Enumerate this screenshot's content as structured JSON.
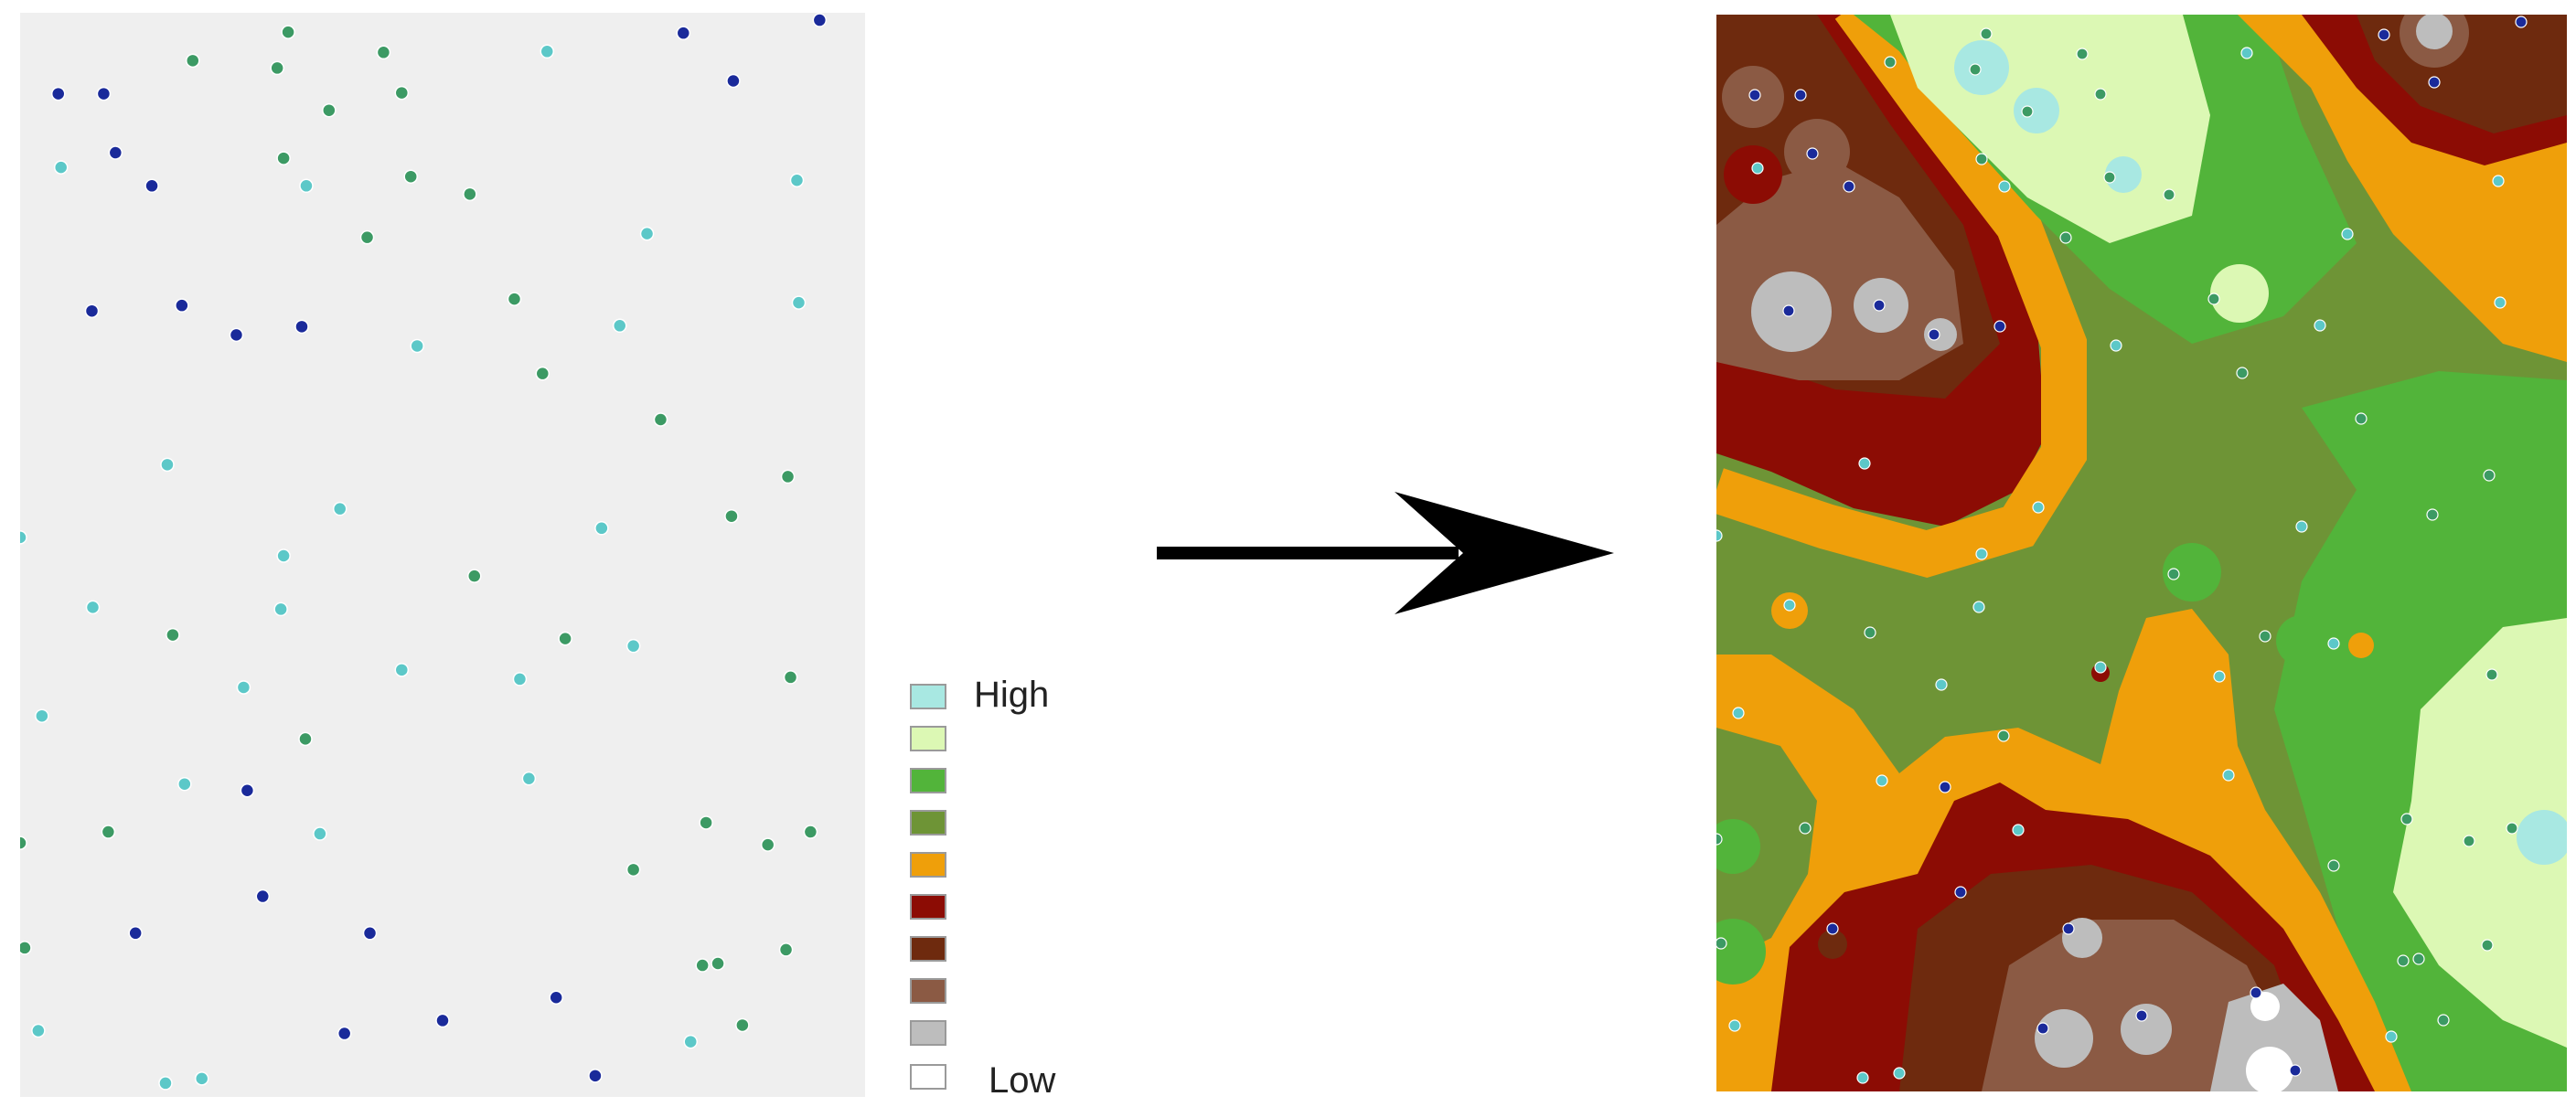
{
  "legend": {
    "high_label": "High",
    "low_label": "Low",
    "classes": [
      {
        "color": "#a8e8e2"
      },
      {
        "color": "#dcf8b4"
      },
      {
        "color": "#52b43a"
      },
      {
        "color": "#6e9436"
      },
      {
        "color": "#ef9f0a"
      },
      {
        "color": "#8c0c04"
      },
      {
        "color": "#6e2a0e"
      },
      {
        "color": "#8b5a44"
      },
      {
        "color": "#bdbdbd"
      },
      {
        "color": "#ffffff"
      }
    ]
  },
  "sample_point_colors": {
    "high": "#5cc8c8",
    "mid": "#3c9a64",
    "low": "#1a2a9a"
  },
  "arrow_color": "#000000"
}
